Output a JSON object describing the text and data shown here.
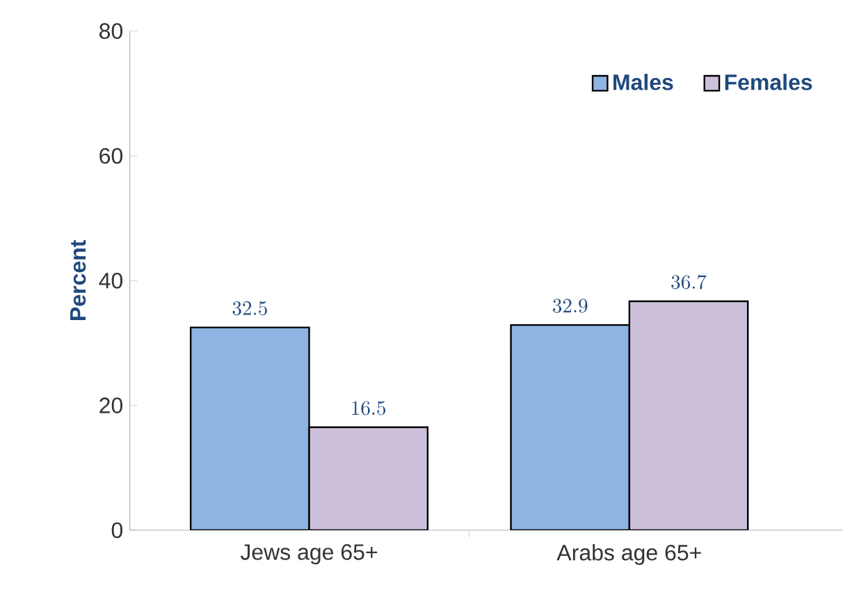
{
  "chart_data": {
    "type": "bar",
    "ylabel": "Percent",
    "categories": [
      "Jews age 65+",
      "Arabs age 65+"
    ],
    "series": [
      {
        "name": "Males",
        "color": "#8db4e2",
        "values": [
          32.5,
          32.9
        ]
      },
      {
        "name": "Females",
        "color": "#ccc0da",
        "values": [
          16.5,
          36.7
        ]
      }
    ],
    "ylim": [
      0,
      80
    ],
    "yticks": [
      0,
      20,
      40,
      60,
      80
    ],
    "grid": false,
    "legend": "top right",
    "data_labels": true
  }
}
